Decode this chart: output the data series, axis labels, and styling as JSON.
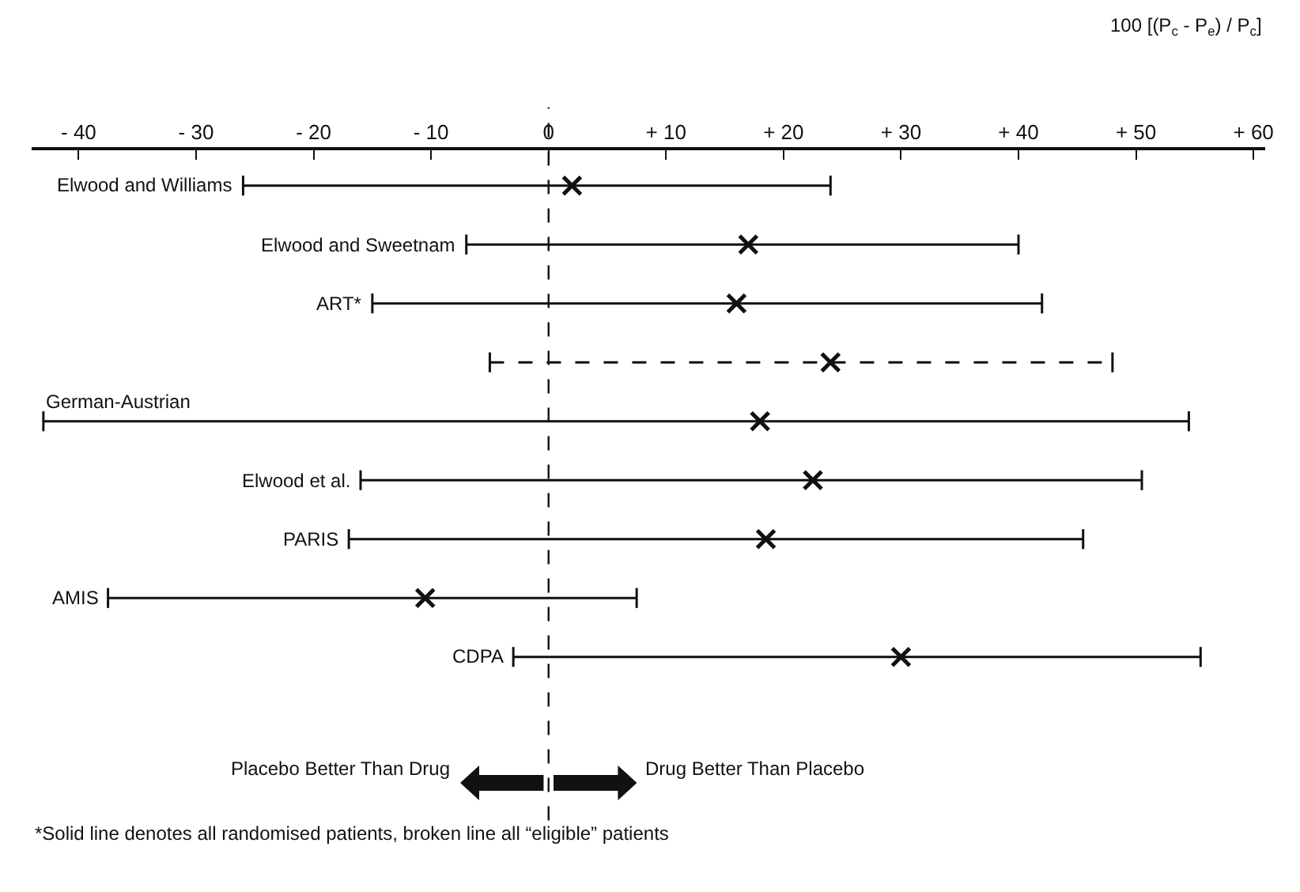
{
  "chart_data": {
    "type": "scatter",
    "orientation": "horizontal",
    "xlabel": "100 [(P$_{c}$ - P$_{e}$) / P$_{c}$]",
    "categories": [
      "Elwood and Williams",
      "Elwood and Sweetnam",
      "ART*",
      null,
      "German-Austrian",
      "Elwood et al.",
      "PARIS",
      "AMIS",
      "CDPA"
    ],
    "series": [
      {
        "color": "#111111",
        "line_style": "solid",
        "values": [
          2,
          17,
          16,
          null,
          18,
          22.5,
          18.5,
          -10.5,
          30
        ],
        "errors": [
          [
            -26,
            24
          ],
          [
            -7,
            40
          ],
          [
            -15,
            42
          ],
          null,
          [
            -43,
            54.5
          ],
          [
            -16,
            50.5
          ],
          [
            -17,
            45.5
          ],
          [
            -37.5,
            7.5
          ],
          [
            -3,
            55.5
          ]
        ]
      },
      {
        "color": "#111111",
        "line_style": "dashed",
        "values": [
          null,
          null,
          null,
          24,
          null,
          null,
          null,
          null,
          null
        ],
        "errors": [
          null,
          null,
          null,
          [
            -5,
            48
          ],
          null,
          null,
          null,
          null,
          null
        ]
      }
    ],
    "marker": "cross",
    "grid": false,
    "xlim": [
      -44,
      61
    ],
    "xticks": [
      {
        "value": -40,
        "label": "- 40"
      },
      {
        "value": -30,
        "label": "- 30"
      },
      {
        "value": -20,
        "label": "- 20"
      },
      {
        "value": -10,
        "label": "- 10"
      },
      0,
      {
        "value": 10,
        "label": "+ 10"
      },
      {
        "value": 20,
        "label": "+ 20"
      },
      {
        "value": 30,
        "label": "+ 30"
      },
      {
        "value": 40,
        "label": "+ 40"
      },
      {
        "value": 50,
        "label": "+ 50"
      },
      {
        "value": 60,
        "label": "+ 60"
      }
    ],
    "ref_lines": [
      {
        "axis": "x",
        "value": 0,
        "line_style": "dashed",
        "color": "#111111"
      }
    ],
    "annotations": [
      "Placebo Better Than Drug",
      "Drug Better Than Placebo",
      "*Solid line denotes all randomised patients, broken line all “eligible” patients"
    ]
  }
}
